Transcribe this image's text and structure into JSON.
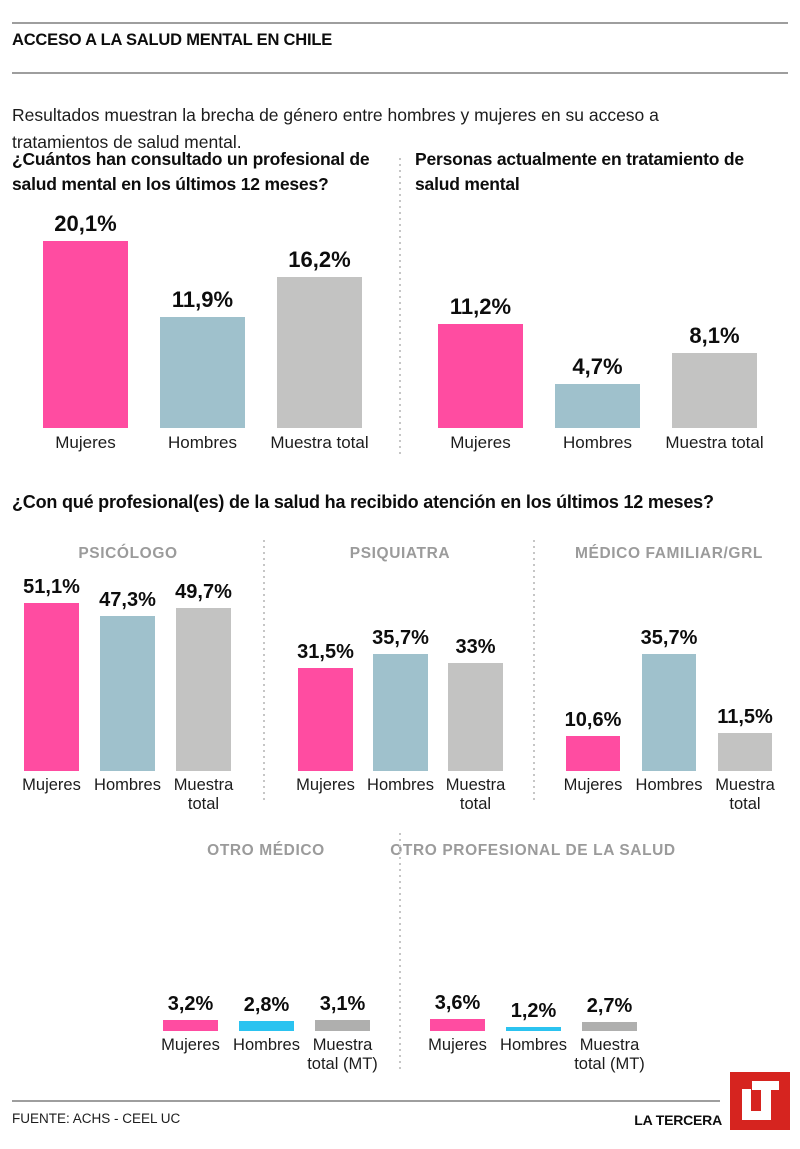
{
  "header": {
    "kicker": "ACCESO A LA SALUD MENTAL EN CHILE",
    "intro": "Resultados muestran la brecha de género entre hombres y mujeres en su acceso a tratamientos de salud mental."
  },
  "section_title": "¿Con qué profesional(es) de la salud ha recibido atención en los últimos 12 meses?",
  "palette": {
    "mujeres_pink": "#FF4CA1",
    "hombres_steel_blue": "#9FC1CC",
    "hombres_cyan": "#2BC3F0",
    "muestra_gray": "#C3C3C2",
    "header_gray": "#9B9B9B",
    "brand_red": "#D6241F"
  },
  "chart_data": [
    {
      "id": "consultaron-profesional",
      "type": "bar",
      "title": "¿Cuántos han consultado un profesional de salud mental en los últimos 12 meses?",
      "categories": [
        "Mujeres",
        "Hombres",
        "Muestra total"
      ],
      "values": [
        20.1,
        11.9,
        16.2
      ],
      "value_labels": [
        "20,1%",
        "11,9%",
        "16,2%"
      ],
      "bar_colors": [
        "#FF4CA1",
        "#9FC1CC",
        "#C3C3C2"
      ],
      "unit": "%",
      "ylim": [
        0,
        22
      ]
    },
    {
      "id": "actualmente-en-tratamiento",
      "type": "bar",
      "title": "Personas actualmente en tratamiento de salud mental",
      "categories": [
        "Mujeres",
        "Hombres",
        "Muestra total"
      ],
      "values": [
        11.2,
        4.7,
        8.1
      ],
      "value_labels": [
        "11,2%",
        "4,7%",
        "8,1%"
      ],
      "bar_colors": [
        "#FF4CA1",
        "#9FC1CC",
        "#C3C3C2"
      ],
      "unit": "%",
      "ylim": [
        0,
        22
      ]
    },
    {
      "id": "psicologo",
      "type": "bar",
      "header": "PSICÓLOGO",
      "categories": [
        "Mujeres",
        "Hombres",
        "Muestra total"
      ],
      "values": [
        51.1,
        47.3,
        49.7
      ],
      "value_labels": [
        "51,1%",
        "47,3%",
        "49,7%"
      ],
      "bar_colors": [
        "#FF4CA1",
        "#9FC1CC",
        "#C3C3C2"
      ],
      "unit": "%",
      "ylim": [
        0,
        60
      ]
    },
    {
      "id": "psiquiatra",
      "type": "bar",
      "header": "PSIQUIATRA",
      "categories": [
        "Mujeres",
        "Hombres",
        "Muestra total"
      ],
      "values": [
        31.5,
        35.7,
        33
      ],
      "value_labels": [
        "31,5%",
        "35,7%",
        "33%"
      ],
      "bar_colors": [
        "#FF4CA1",
        "#9FC1CC",
        "#C3C3C2"
      ],
      "unit": "%",
      "ylim": [
        0,
        60
      ]
    },
    {
      "id": "medico-familiar-grl",
      "type": "bar",
      "header": "MÉDICO FAMILIAR/GRL",
      "categories": [
        "Mujeres",
        "Hombres",
        "Muestra total"
      ],
      "values": [
        10.6,
        35.7,
        11.5
      ],
      "value_labels": [
        "10,6%",
        "35,7%",
        "11,5%"
      ],
      "bar_colors": [
        "#FF4CA1",
        "#9FC1CC",
        "#C3C3C2"
      ],
      "unit": "%",
      "ylim": [
        0,
        60
      ]
    },
    {
      "id": "otro-medico",
      "type": "bar",
      "header": "OTRO MÉDICO",
      "categories": [
        "Mujeres",
        "Hombres",
        "Muestra total (MT)"
      ],
      "values": [
        3.2,
        2.8,
        3.1
      ],
      "value_labels": [
        "3,2%",
        "2,8%",
        "3,1%"
      ],
      "bar_colors": [
        "#FF4CA1",
        "#2BC3F0",
        "#AFAFAE"
      ],
      "unit": "%",
      "ylim": [
        0,
        5
      ]
    },
    {
      "id": "otro-profesional-salud",
      "type": "bar",
      "header": "OTRO PROFESIONAL DE LA SALUD",
      "categories": [
        "Mujeres",
        "Hombres",
        "Muestra total (MT)"
      ],
      "values": [
        3.6,
        1.2,
        2.7
      ],
      "value_labels": [
        "3,6%",
        "1,2%",
        "2,7%"
      ],
      "bar_colors": [
        "#FF4CA1",
        "#2BC3F0",
        "#AFAFAE"
      ],
      "unit": "%",
      "ylim": [
        0,
        5
      ]
    }
  ],
  "footer": {
    "source": "FUENTE: ACHS - CEEL UC",
    "brand": "LA TERCERA",
    "logo_text": "LT"
  }
}
